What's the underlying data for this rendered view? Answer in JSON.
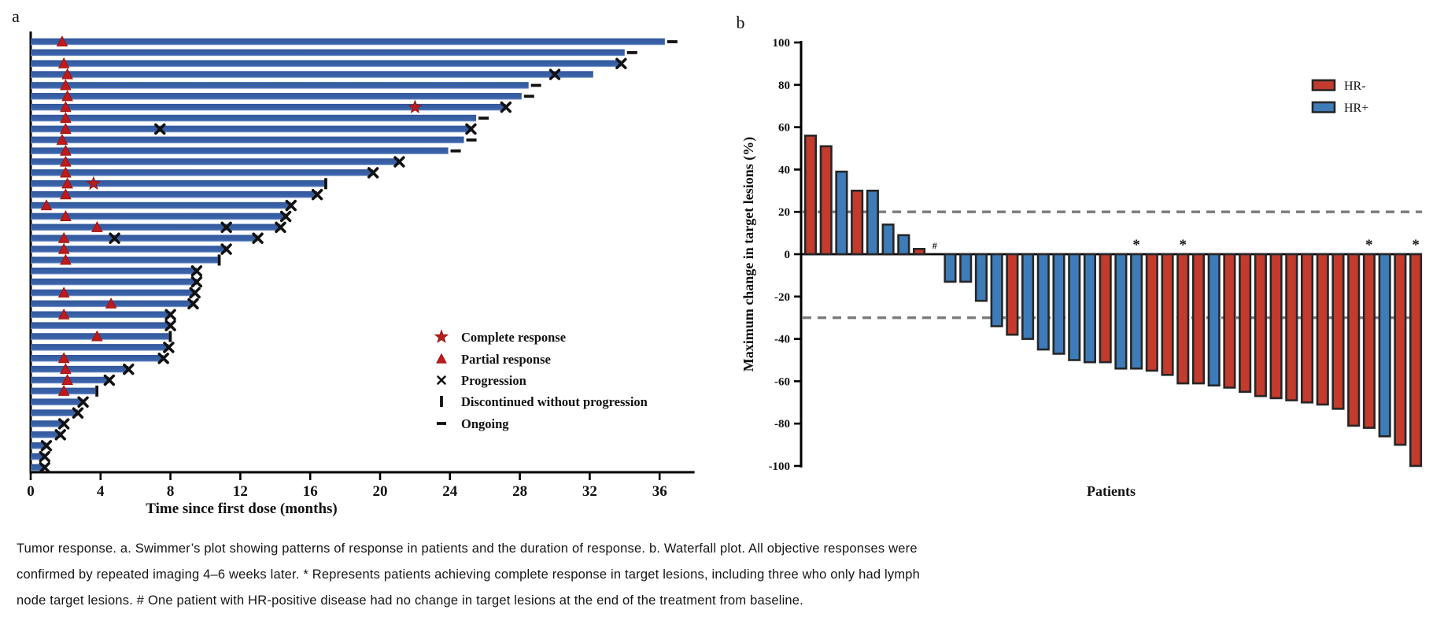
{
  "figure": {
    "panel_a_label": "a",
    "panel_b_label": "b"
  },
  "colors": {
    "swimmer_bar": "#3a62a8",
    "swimmer_bar_edge": "#8ba7d6",
    "marker_red": "#c01a1a",
    "marker_black": "#111111",
    "hr_negative_red": "#c23b2d",
    "hr_positive_blue": "#3d7cb8",
    "bar_outline": "#262626",
    "ref_line_gray": "#7b7b7b",
    "axis_black": "#000000"
  },
  "chart_data": [
    {
      "type": "swimmer",
      "panel": "a",
      "xlabel": "Time since first dose (months)",
      "x_ticks": [
        0,
        4,
        8,
        12,
        16,
        20,
        24,
        28,
        32,
        36
      ],
      "xlim": [
        0,
        38
      ],
      "legend": [
        {
          "icon": "star",
          "color": "#c01a1a",
          "label": "Complete response"
        },
        {
          "icon": "triangle",
          "color": "#c01a1a",
          "label": "Partial response"
        },
        {
          "icon": "x",
          "color": "#111111",
          "label": "Progression"
        },
        {
          "icon": "pipe",
          "color": "#111111",
          "label": "Discontinued without progression"
        },
        {
          "icon": "dash",
          "color": "#111111",
          "label": "Ongoing"
        }
      ],
      "patients": [
        {
          "bar": 36.3,
          "triangle": 1.8,
          "end": "ongoing"
        },
        {
          "bar": 34.0,
          "end": "ongoing"
        },
        {
          "bar": 33.8,
          "triangle": 1.9,
          "end": "x"
        },
        {
          "bar": 32.2,
          "triangle": 2.1,
          "x_mid": [
            30.0
          ],
          "end": "none"
        },
        {
          "bar": 28.5,
          "triangle": 2.0,
          "end": "ongoing"
        },
        {
          "bar": 28.1,
          "triangle": 2.1,
          "end": "ongoing"
        },
        {
          "bar": 27.2,
          "triangle": 2.0,
          "star": 22.0,
          "end": "x"
        },
        {
          "bar": 25.5,
          "triangle": 2.0,
          "end": "ongoing"
        },
        {
          "bar": 25.2,
          "triangle": 2.0,
          "x_mid": [
            7.4
          ],
          "end": "x"
        },
        {
          "bar": 24.8,
          "triangle": 1.8,
          "end": "ongoing"
        },
        {
          "bar": 23.9,
          "triangle": 2.0,
          "end": "ongoing"
        },
        {
          "bar": 21.1,
          "triangle": 2.0,
          "end": "x"
        },
        {
          "bar": 19.6,
          "triangle": 2.0,
          "end": "x"
        },
        {
          "bar": 16.8,
          "triangle": 2.1,
          "star": 3.6,
          "end": "pipe"
        },
        {
          "bar": 16.4,
          "triangle": 2.0,
          "end": "x"
        },
        {
          "bar": 14.9,
          "triangle": 0.9,
          "end": "x"
        },
        {
          "bar": 14.6,
          "triangle": 2.0,
          "end": "x"
        },
        {
          "bar": 14.3,
          "triangle": 3.8,
          "x_mid": [
            11.2
          ],
          "end": "x"
        },
        {
          "bar": 13.0,
          "triangle": 1.9,
          "x_mid": [
            4.8
          ],
          "end": "x"
        },
        {
          "bar": 11.2,
          "triangle": 1.9,
          "end": "x"
        },
        {
          "bar": 10.7,
          "triangle": 2.0,
          "end": "pipe"
        },
        {
          "bar": 9.5,
          "end": "x"
        },
        {
          "bar": 9.5,
          "end": "x"
        },
        {
          "bar": 9.4,
          "triangle": 1.9,
          "end": "x"
        },
        {
          "bar": 9.3,
          "triangle": 4.6,
          "end": "x"
        },
        {
          "bar": 8.0,
          "triangle": 1.9,
          "end": "x"
        },
        {
          "bar": 8.0,
          "end": "x"
        },
        {
          "bar": 7.9,
          "triangle": 3.8,
          "end": "pipe"
        },
        {
          "bar": 7.9,
          "end": "x"
        },
        {
          "bar": 7.6,
          "triangle": 1.9,
          "end": "x"
        },
        {
          "bar": 5.6,
          "triangle": 2.0,
          "end": "x"
        },
        {
          "bar": 4.5,
          "triangle": 2.1,
          "end": "x"
        },
        {
          "bar": 3.7,
          "triangle": 1.9,
          "end": "pipe"
        },
        {
          "bar": 3.0,
          "end": "x"
        },
        {
          "bar": 2.7,
          "end": "x"
        },
        {
          "bar": 1.9,
          "end": "x"
        },
        {
          "bar": 1.7,
          "end": "x"
        },
        {
          "bar": 0.9,
          "end": "x"
        },
        {
          "bar": 0.8,
          "end": "x"
        },
        {
          "bar": 0.8,
          "end": "x"
        }
      ]
    },
    {
      "type": "waterfall",
      "panel": "b",
      "ylabel": "Maximum change in target lesions (%)",
      "xlabel": "Patients",
      "y_ticks": [
        100,
        80,
        60,
        40,
        20,
        0,
        -20,
        -40,
        -60,
        -80,
        -100
      ],
      "ylim": [
        -100,
        100
      ],
      "reference_lines": [
        20,
        -30
      ],
      "legend": [
        {
          "label": "HR-",
          "color": "#c23b2d"
        },
        {
          "label": "HR+",
          "color": "#3d7cb8"
        }
      ],
      "bars": [
        {
          "value": 56,
          "group": "HR-"
        },
        {
          "value": 51,
          "group": "HR-"
        },
        {
          "value": 39,
          "group": "HR+"
        },
        {
          "value": 30,
          "group": "HR-"
        },
        {
          "value": 30,
          "group": "HR+"
        },
        {
          "value": 14,
          "group": "HR+"
        },
        {
          "value": 9,
          "group": "HR+"
        },
        {
          "value": 2.5,
          "group": "HR-"
        },
        {
          "value": 0,
          "group": "HR+",
          "annotation": "#"
        },
        {
          "value": -13,
          "group": "HR+"
        },
        {
          "value": -13,
          "group": "HR+"
        },
        {
          "value": -22,
          "group": "HR+"
        },
        {
          "value": -34,
          "group": "HR+"
        },
        {
          "value": -38,
          "group": "HR-"
        },
        {
          "value": -40,
          "group": "HR+"
        },
        {
          "value": -45,
          "group": "HR+"
        },
        {
          "value": -47,
          "group": "HR+"
        },
        {
          "value": -50,
          "group": "HR+"
        },
        {
          "value": -51,
          "group": "HR+"
        },
        {
          "value": -51,
          "group": "HR-"
        },
        {
          "value": -54,
          "group": "HR+"
        },
        {
          "value": -54,
          "group": "HR+",
          "annotation": "*"
        },
        {
          "value": -55,
          "group": "HR-"
        },
        {
          "value": -57,
          "group": "HR-"
        },
        {
          "value": -61,
          "group": "HR-",
          "annotation": "*"
        },
        {
          "value": -61,
          "group": "HR-"
        },
        {
          "value": -62,
          "group": "HR+"
        },
        {
          "value": -63,
          "group": "HR-"
        },
        {
          "value": -65,
          "group": "HR-"
        },
        {
          "value": -67,
          "group": "HR-"
        },
        {
          "value": -68,
          "group": "HR-"
        },
        {
          "value": -69,
          "group": "HR-"
        },
        {
          "value": -70,
          "group": "HR-"
        },
        {
          "value": -71,
          "group": "HR-"
        },
        {
          "value": -73,
          "group": "HR-"
        },
        {
          "value": -81,
          "group": "HR-"
        },
        {
          "value": -82,
          "group": "HR-",
          "annotation": "*"
        },
        {
          "value": -86,
          "group": "HR+"
        },
        {
          "value": -90,
          "group": "HR-"
        },
        {
          "value": -100,
          "group": "HR-",
          "annotation": "*"
        }
      ]
    }
  ],
  "caption": {
    "line1": "Tumor response. a. Swimmer’s plot showing patterns of response in patients and the duration of response. b. Waterfall plot. All objective responses were",
    "line2": "confirmed by repeated imaging 4–6 weeks later. * Represents patients achieving complete response in target lesions, including three who only had lymph",
    "line3": "node target lesions. # One patient with HR-positive disease had no change in target lesions at the end of the treatment from baseline."
  }
}
